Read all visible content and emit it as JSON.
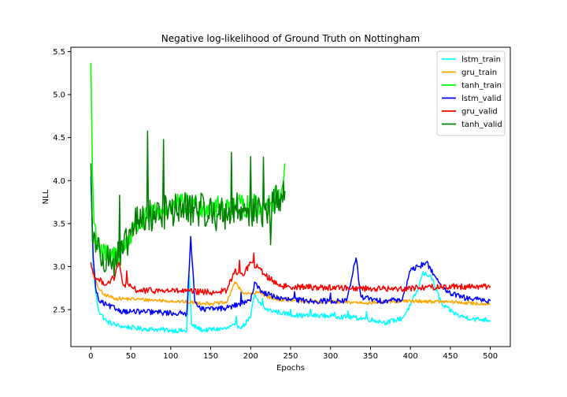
{
  "chart_data": {
    "type": "line",
    "title": "Negative log-likelihood of Ground Truth on Nottingham",
    "xlabel": "Epochs",
    "ylabel": "NLL",
    "xlim": [
      -25,
      525
    ],
    "ylim": [
      2.07,
      5.55
    ],
    "xticks": [
      0,
      50,
      100,
      150,
      200,
      250,
      300,
      350,
      400,
      450,
      500
    ],
    "yticks": [
      2.5,
      3.0,
      3.5,
      4.0,
      4.5,
      5.0,
      5.5
    ],
    "legend_position": "upper right",
    "grid": false,
    "series": [
      {
        "name": "lstm_train",
        "color": "#00ffff",
        "kind": "smooth",
        "length": 500,
        "keypoints": [
          [
            0,
            4.0
          ],
          [
            3,
            3.0
          ],
          [
            6,
            2.7
          ],
          [
            10,
            2.48
          ],
          [
            20,
            2.36
          ],
          [
            35,
            2.31
          ],
          [
            60,
            2.28
          ],
          [
            100,
            2.26
          ],
          [
            120,
            2.25
          ],
          [
            123,
            2.9
          ],
          [
            126,
            2.32
          ],
          [
            140,
            2.26
          ],
          [
            170,
            2.28
          ],
          [
            180,
            2.32
          ],
          [
            190,
            2.3
          ],
          [
            200,
            2.42
          ],
          [
            205,
            2.68
          ],
          [
            210,
            2.58
          ],
          [
            220,
            2.5
          ],
          [
            240,
            2.46
          ],
          [
            260,
            2.43
          ],
          [
            290,
            2.43
          ],
          [
            310,
            2.42
          ],
          [
            340,
            2.4
          ],
          [
            370,
            2.35
          ],
          [
            390,
            2.4
          ],
          [
            400,
            2.55
          ],
          [
            410,
            2.75
          ],
          [
            415,
            2.92
          ],
          [
            425,
            2.9
          ],
          [
            440,
            2.55
          ],
          [
            460,
            2.43
          ],
          [
            480,
            2.39
          ],
          [
            500,
            2.38
          ]
        ],
        "noise": 0.035,
        "spikes": [
          [
            182,
            0.08
          ],
          [
            215,
            0.1
          ],
          [
            250,
            0.06
          ],
          [
            275,
            0.08
          ],
          [
            305,
            0.07
          ],
          [
            322,
            0.09
          ],
          [
            345,
            0.08
          ]
        ]
      },
      {
        "name": "gru_train",
        "color": "#ffa500",
        "kind": "smooth",
        "length": 500,
        "keypoints": [
          [
            0,
            3.05
          ],
          [
            3,
            2.9
          ],
          [
            8,
            2.78
          ],
          [
            15,
            2.68
          ],
          [
            30,
            2.63
          ],
          [
            60,
            2.62
          ],
          [
            100,
            2.6
          ],
          [
            150,
            2.57
          ],
          [
            170,
            2.58
          ],
          [
            180,
            2.82
          ],
          [
            190,
            2.7
          ],
          [
            200,
            2.68
          ],
          [
            210,
            2.7
          ],
          [
            230,
            2.62
          ],
          [
            260,
            2.6
          ],
          [
            300,
            2.59
          ],
          [
            350,
            2.58
          ],
          [
            400,
            2.6
          ],
          [
            450,
            2.59
          ],
          [
            480,
            2.57
          ],
          [
            500,
            2.57
          ]
        ],
        "noise": 0.025,
        "spikes": []
      },
      {
        "name": "tanh_train",
        "color": "#00ff00",
        "kind": "noisy",
        "length": 243,
        "keypoints": [
          [
            0,
            5.37
          ],
          [
            2,
            4.1
          ],
          [
            4,
            3.5
          ],
          [
            8,
            3.3
          ],
          [
            15,
            3.15
          ],
          [
            25,
            3.1
          ],
          [
            40,
            3.2
          ],
          [
            55,
            3.45
          ],
          [
            75,
            3.6
          ],
          [
            100,
            3.7
          ],
          [
            130,
            3.72
          ],
          [
            160,
            3.68
          ],
          [
            190,
            3.7
          ],
          [
            220,
            3.72
          ],
          [
            238,
            3.85
          ],
          [
            243,
            4.2
          ]
        ],
        "noise": 0.14,
        "spikes": []
      },
      {
        "name": "lstm_valid",
        "color": "#0000ff",
        "kind": "smooth",
        "length": 500,
        "keypoints": [
          [
            0,
            4.05
          ],
          [
            3,
            3.1
          ],
          [
            6,
            2.75
          ],
          [
            10,
            2.6
          ],
          [
            20,
            2.55
          ],
          [
            40,
            2.48
          ],
          [
            80,
            2.47
          ],
          [
            120,
            2.45
          ],
          [
            125,
            3.35
          ],
          [
            130,
            2.6
          ],
          [
            140,
            2.5
          ],
          [
            170,
            2.52
          ],
          [
            200,
            2.6
          ],
          [
            205,
            2.82
          ],
          [
            215,
            2.7
          ],
          [
            240,
            2.62
          ],
          [
            280,
            2.6
          ],
          [
            320,
            2.6
          ],
          [
            332,
            3.1
          ],
          [
            338,
            2.65
          ],
          [
            360,
            2.6
          ],
          [
            390,
            2.62
          ],
          [
            400,
            2.95
          ],
          [
            410,
            3.0
          ],
          [
            420,
            3.05
          ],
          [
            430,
            2.9
          ],
          [
            445,
            2.7
          ],
          [
            470,
            2.63
          ],
          [
            500,
            2.6
          ]
        ],
        "noise": 0.04,
        "spikes": [
          [
            188,
            0.12
          ],
          [
            255,
            0.08
          ],
          [
            300,
            0.08
          ]
        ]
      },
      {
        "name": "gru_valid",
        "color": "#ff0000",
        "kind": "smooth",
        "length": 500,
        "keypoints": [
          [
            0,
            3.05
          ],
          [
            3,
            2.92
          ],
          [
            8,
            2.85
          ],
          [
            20,
            2.8
          ],
          [
            30,
            2.88
          ],
          [
            35,
            3.05
          ],
          [
            40,
            2.8
          ],
          [
            60,
            2.72
          ],
          [
            100,
            2.72
          ],
          [
            150,
            2.7
          ],
          [
            170,
            2.72
          ],
          [
            180,
            2.95
          ],
          [
            190,
            2.9
          ],
          [
            200,
            3.05
          ],
          [
            210,
            2.98
          ],
          [
            225,
            2.85
          ],
          [
            240,
            2.77
          ],
          [
            280,
            2.76
          ],
          [
            330,
            2.75
          ],
          [
            380,
            2.74
          ],
          [
            420,
            2.76
          ],
          [
            460,
            2.77
          ],
          [
            500,
            2.77
          ]
        ],
        "noise": 0.045,
        "spikes": [
          [
            45,
            0.15
          ],
          [
            186,
            0.12
          ],
          [
            204,
            0.1
          ]
        ]
      },
      {
        "name": "tanh_valid",
        "color": "#008000",
        "kind": "noisy",
        "length": 243,
        "keypoints": [
          [
            0,
            4.2
          ],
          [
            2,
            3.3
          ],
          [
            4,
            3.4
          ],
          [
            8,
            3.2
          ],
          [
            15,
            3.15
          ],
          [
            25,
            3.05
          ],
          [
            40,
            3.15
          ],
          [
            55,
            3.5
          ],
          [
            75,
            3.6
          ],
          [
            100,
            3.65
          ],
          [
            130,
            3.68
          ],
          [
            160,
            3.6
          ],
          [
            190,
            3.68
          ],
          [
            220,
            3.6
          ],
          [
            238,
            3.85
          ],
          [
            243,
            3.88
          ]
        ],
        "noise": 0.2,
        "spikes": [
          [
            91,
            0.95
          ],
          [
            71,
            0.8
          ],
          [
            200,
            0.65
          ],
          [
            176,
            0.7
          ],
          [
            36,
            0.55
          ],
          [
            216,
            0.62
          ],
          [
            225,
            -0.5
          ]
        ]
      }
    ]
  }
}
